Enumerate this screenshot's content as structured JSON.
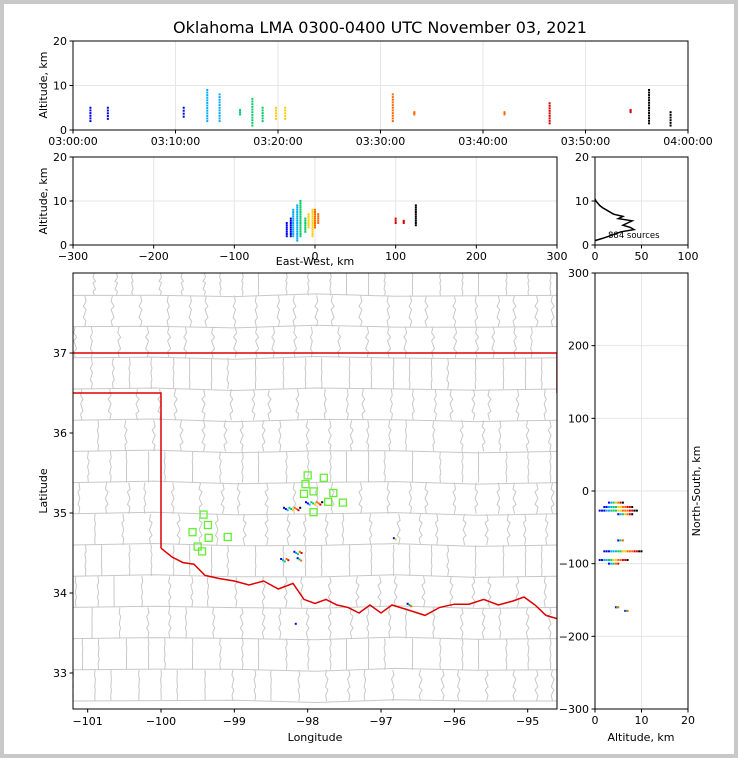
{
  "chart_data": {
    "type": "scatter",
    "title": "Oklahoma LMA 0300-0400 UTC November 03, 2021",
    "source_count_label": "884 sources",
    "colors": {
      "border_state": "#e00000",
      "county": "#c8c8c8",
      "station": "#66ee33",
      "grid": "#e6e6e6",
      "color_scale": [
        "#0000ee",
        "#00aaff",
        "#00cc66",
        "#ffcc00",
        "#ff6600",
        "#dd0000",
        "#000000"
      ]
    },
    "time_altitude": {
      "ylabel": "Altitude, km",
      "ylim": [
        0,
        20
      ],
      "yticks": [
        "0",
        "10",
        "20"
      ],
      "xlim_minutes": [
        0,
        60
      ],
      "xticks": [
        "03:00:00",
        "03:10:00",
        "03:20:00",
        "03:30:00",
        "03:40:00",
        "03:50:00",
        "04:00:00"
      ],
      "columns": [
        {
          "t": 1.7,
          "zmin": 2,
          "zmax": 5
        },
        {
          "t": 3.4,
          "zmin": 2.5,
          "zmax": 5
        },
        {
          "t": 10.8,
          "zmin": 3,
          "zmax": 5
        },
        {
          "t": 13.1,
          "zmin": 2,
          "zmax": 9
        },
        {
          "t": 14.3,
          "zmin": 2,
          "zmax": 8
        },
        {
          "t": 16.3,
          "zmin": 3.5,
          "zmax": 4.5
        },
        {
          "t": 17.5,
          "zmin": 1,
          "zmax": 7
        },
        {
          "t": 18.5,
          "zmin": 2,
          "zmax": 5
        },
        {
          "t": 19.8,
          "zmin": 2.5,
          "zmax": 5
        },
        {
          "t": 20.7,
          "zmin": 2.5,
          "zmax": 5
        },
        {
          "t": 31.2,
          "zmin": 2,
          "zmax": 8
        },
        {
          "t": 33.3,
          "zmin": 3.5,
          "zmax": 4
        },
        {
          "t": 42.1,
          "zmin": 3.5,
          "zmax": 4
        },
        {
          "t": 46.5,
          "zmin": 1.5,
          "zmax": 6
        },
        {
          "t": 54.4,
          "zmin": 4,
          "zmax": 4.5
        },
        {
          "t": 56.2,
          "zmin": 1.5,
          "zmax": 9
        },
        {
          "t": 58.3,
          "zmin": 1,
          "zmax": 4
        }
      ]
    },
    "ew_altitude": {
      "xlabel": "East-West, km",
      "ylabel": "Altitude, km",
      "xlim": [
        -300,
        300
      ],
      "ylim": [
        0,
        20
      ],
      "xticks": [
        "−300",
        "−200",
        "−100",
        "0",
        "100",
        "200",
        "300"
      ],
      "yticks": [
        "0",
        "10",
        "20"
      ],
      "columns": [
        {
          "x": -35,
          "zmin": 2,
          "zmax": 5
        },
        {
          "x": -30,
          "zmin": 2,
          "zmax": 6
        },
        {
          "x": -27,
          "zmin": 2,
          "zmax": 8
        },
        {
          "x": -22,
          "zmin": 1,
          "zmax": 9
        },
        {
          "x": -18,
          "zmin": 2,
          "zmax": 10
        },
        {
          "x": -12,
          "zmin": 3,
          "zmax": 6
        },
        {
          "x": -8,
          "zmin": 4,
          "zmax": 7
        },
        {
          "x": -3,
          "zmin": 2,
          "zmax": 8
        },
        {
          "x": 0,
          "zmin": 4,
          "zmax": 8
        },
        {
          "x": 4,
          "zmin": 5,
          "zmax": 7
        },
        {
          "x": 100,
          "zmin": 5,
          "zmax": 6
        },
        {
          "x": 110,
          "zmin": 5,
          "zmax": 5.5
        },
        {
          "x": 125,
          "zmin": 4.5,
          "zmax": 9
        }
      ]
    },
    "histogram": {
      "xlim": [
        0,
        100
      ],
      "ylim": [
        0,
        20
      ],
      "xticks": [
        "0",
        "50",
        "100"
      ],
      "yticks": [
        "0",
        "10",
        "20"
      ],
      "profile": [
        [
          0,
          1
        ],
        [
          8,
          1.5
        ],
        [
          15,
          2
        ],
        [
          28,
          3
        ],
        [
          42,
          3.5
        ],
        [
          38,
          4
        ],
        [
          30,
          4.5
        ],
        [
          35,
          5
        ],
        [
          40,
          5.5
        ],
        [
          25,
          6
        ],
        [
          30,
          6.5
        ],
        [
          20,
          7
        ],
        [
          12,
          8
        ],
        [
          8,
          8.5
        ],
        [
          5,
          9
        ],
        [
          3,
          9.5
        ],
        [
          1,
          10
        ],
        [
          0,
          10.5
        ]
      ]
    },
    "plan_view": {
      "xlabel": "Longitude",
      "ylabel": "Latitude",
      "xlim": [
        -101.2,
        -94.6
      ],
      "ylim": [
        32.55,
        38.0
      ],
      "xticks": [
        "−101",
        "−100",
        "−99",
        "−98",
        "−97",
        "−96",
        "−95"
      ],
      "xtick_values": [
        -101,
        -100,
        -99,
        -98,
        -97,
        -96,
        -95
      ],
      "yticks": [
        "33",
        "34",
        "35",
        "36",
        "37"
      ],
      "ytick_values": [
        33,
        34,
        35,
        36,
        37
      ],
      "stations": [
        {
          "lon": -98.0,
          "lat": 35.47
        },
        {
          "lon": -97.78,
          "lat": 35.44
        },
        {
          "lon": -98.03,
          "lat": 35.36
        },
        {
          "lon": -98.05,
          "lat": 35.24
        },
        {
          "lon": -97.92,
          "lat": 35.27
        },
        {
          "lon": -97.65,
          "lat": 35.25
        },
        {
          "lon": -97.72,
          "lat": 35.14
        },
        {
          "lon": -97.52,
          "lat": 35.13
        },
        {
          "lon": -97.92,
          "lat": 35.01
        },
        {
          "lon": -99.42,
          "lat": 34.98
        },
        {
          "lon": -99.36,
          "lat": 34.85
        },
        {
          "lon": -99.57,
          "lat": 34.76
        },
        {
          "lon": -99.35,
          "lat": 34.69
        },
        {
          "lon": -99.09,
          "lat": 34.7
        },
        {
          "lon": -99.5,
          "lat": 34.58
        },
        {
          "lon": -99.44,
          "lat": 34.52
        }
      ],
      "sources": [
        {
          "lon": -98.2,
          "lat": 35.05,
          "n": 10
        },
        {
          "lon": -97.9,
          "lat": 35.12,
          "n": 10
        },
        {
          "lon": -98.12,
          "lat": 34.5,
          "n": 5
        },
        {
          "lon": -98.3,
          "lat": 34.41,
          "n": 5
        },
        {
          "lon": -98.1,
          "lat": 34.42,
          "n": 3
        },
        {
          "lon": -96.8,
          "lat": 34.67,
          "n": 2
        },
        {
          "lon": -96.6,
          "lat": 33.85,
          "n": 3
        },
        {
          "lon": -98.15,
          "lat": 33.6,
          "n": 1
        }
      ]
    },
    "ns_altitude": {
      "xlabel": "Altitude, km",
      "ylabel": "North-South, km",
      "xlim": [
        0,
        20
      ],
      "ylim": [
        -300,
        300
      ],
      "xticks": [
        "0",
        "10",
        "20"
      ],
      "yticks": [
        "−300",
        "−200",
        "−100",
        "0",
        "100",
        "200",
        "300"
      ],
      "rows": [
        {
          "y": -16,
          "zmin": 3,
          "zmax": 6
        },
        {
          "y": -22,
          "zmin": 2,
          "zmax": 8
        },
        {
          "y": -27,
          "zmin": 1,
          "zmax": 9
        },
        {
          "y": -32,
          "zmin": 5,
          "zmax": 8
        },
        {
          "y": -68,
          "zmin": 5,
          "zmax": 6
        },
        {
          "y": -83,
          "zmin": 2,
          "zmax": 10
        },
        {
          "y": -95,
          "zmin": 1,
          "zmax": 7
        },
        {
          "y": -100,
          "zmin": 3,
          "zmax": 5
        },
        {
          "y": -160,
          "zmin": 4.5,
          "zmax": 5
        },
        {
          "y": -165,
          "zmin": 6.5,
          "zmax": 7
        }
      ]
    }
  }
}
